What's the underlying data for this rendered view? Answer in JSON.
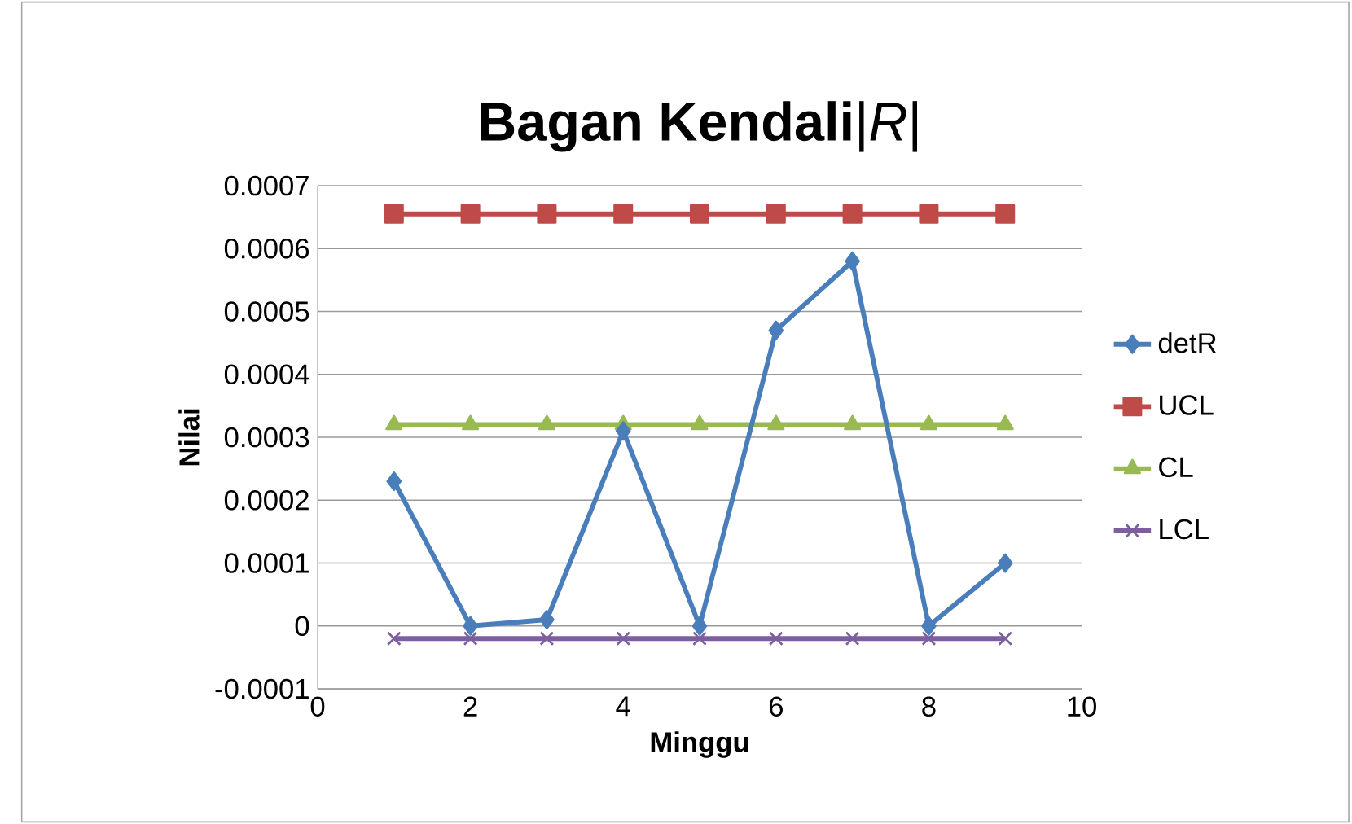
{
  "chart_data": {
    "type": "line",
    "title": "**Bagan Kendali**|*R*|",
    "xlabel": "Minggu",
    "ylabel": "Nilai",
    "x": [
      1,
      2,
      3,
      4,
      5,
      6,
      7,
      8,
      9
    ],
    "series": [
      {
        "name": "detR",
        "color": "#4a7ebb",
        "marker": "diamond",
        "values": [
          0.00023,
          0,
          1e-05,
          0.00031,
          0,
          0.00047,
          0.00058,
          0,
          0.0001
        ]
      },
      {
        "name": "UCL",
        "color": "#be4b48",
        "marker": "square",
        "values": [
          0.000655,
          0.000655,
          0.000655,
          0.000655,
          0.000655,
          0.000655,
          0.000655,
          0.000655,
          0.000655
        ]
      },
      {
        "name": "CL",
        "color": "#98b954",
        "marker": "triangle",
        "values": [
          0.00032,
          0.00032,
          0.00032,
          0.00032,
          0.00032,
          0.00032,
          0.00032,
          0.00032,
          0.00032
        ]
      },
      {
        "name": "LCL",
        "color": "#7d5fa0",
        "marker": "cross",
        "values": [
          -2e-05,
          -2e-05,
          -2e-05,
          -2e-05,
          -2e-05,
          -2e-05,
          -2e-05,
          -2e-05,
          -2e-05
        ]
      }
    ],
    "xlim": [
      0,
      10
    ],
    "xticks": [
      0,
      2,
      4,
      6,
      8,
      10
    ],
    "ylim": [
      -0.0001,
      0.0007
    ],
    "yticks": [
      -0.0001,
      0,
      0.0001,
      0.0002,
      0.0003,
      0.0004,
      0.0005,
      0.0006,
      0.0007
    ],
    "grid": "y",
    "legend": "right",
    "line_style": "solid"
  }
}
